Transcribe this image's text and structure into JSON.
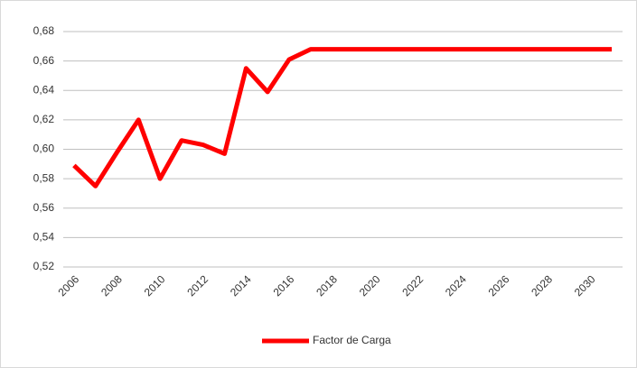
{
  "chart_data": {
    "type": "line",
    "categories": [
      "2006",
      null,
      "2008",
      null,
      "2010",
      null,
      "2012",
      null,
      "2014",
      null,
      "2016",
      null,
      "2018",
      null,
      "2020",
      null,
      "2022",
      null,
      "2024",
      null,
      "2026",
      null,
      "2028",
      null,
      "2030",
      null
    ],
    "series": [
      {
        "name": "Factor de Carga",
        "color": "#ff0000",
        "values": [
          0.589,
          0.575,
          0.598,
          0.62,
          0.58,
          0.606,
          0.603,
          0.597,
          0.655,
          0.639,
          0.661,
          0.668,
          0.668,
          0.668,
          0.668,
          0.668,
          0.668,
          0.668,
          0.668,
          0.668,
          0.668,
          0.668,
          0.668,
          0.668,
          0.668,
          0.668
        ]
      }
    ],
    "ylim": [
      0.52,
      0.68
    ],
    "yticks": [
      {
        "value": 0.52,
        "label": "0,52"
      },
      {
        "value": 0.54,
        "label": "0,54"
      },
      {
        "value": 0.56,
        "label": "0,56"
      },
      {
        "value": 0.58,
        "label": "0,58"
      },
      {
        "value": 0.6,
        "label": "0,60"
      },
      {
        "value": 0.62,
        "label": "0,62"
      },
      {
        "value": 0.64,
        "label": "0,64"
      },
      {
        "value": 0.66,
        "label": "0,66"
      },
      {
        "value": 0.68,
        "label": "0,68"
      }
    ],
    "grid": true,
    "legend": "bottom"
  }
}
